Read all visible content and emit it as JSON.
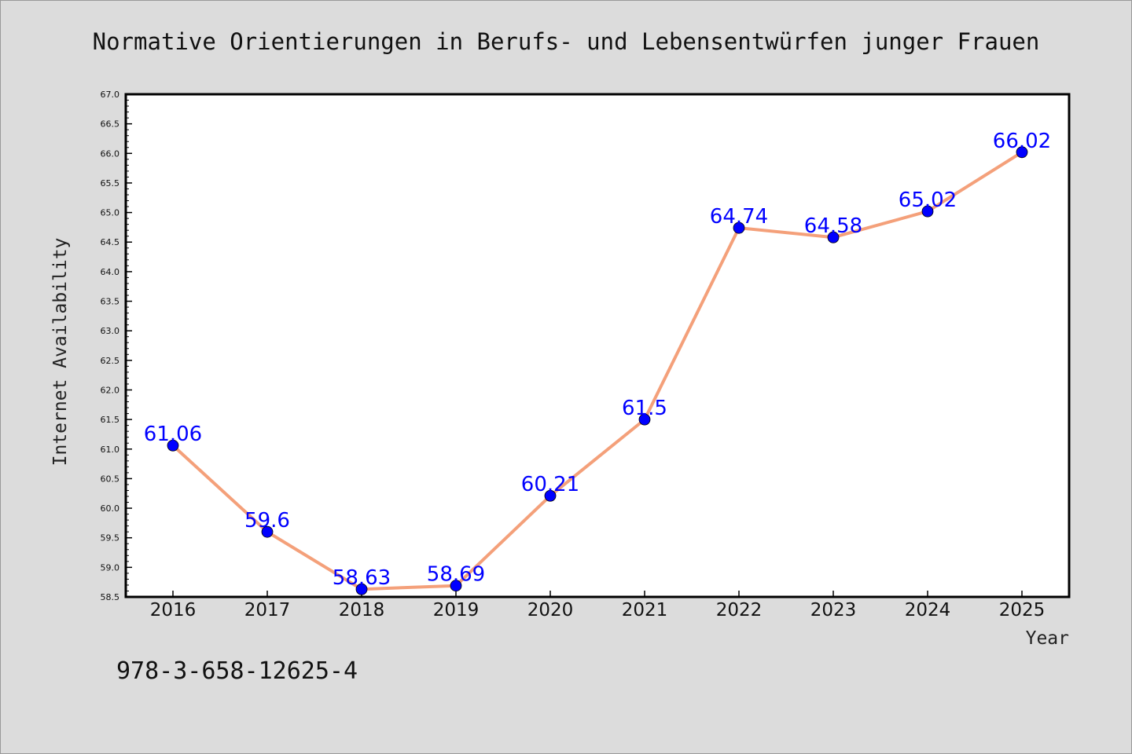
{
  "chart_data": {
    "type": "line",
    "title": "Normative Orientierungen in Berufs- und Lebensentwürfen junger Frauen",
    "xlabel": "Year",
    "ylabel": "Internet Availability",
    "categories": [
      "2016",
      "2017",
      "2018",
      "2019",
      "2020",
      "2021",
      "2022",
      "2023",
      "2024",
      "2025"
    ],
    "series": [
      {
        "values": [
          61.06,
          59.6,
          58.63,
          58.69,
          60.21,
          61.5,
          64.74,
          64.58,
          65.02,
          66.02
        ],
        "data_labels": [
          "61.06",
          "59.6",
          "58.63",
          "58.69",
          "60.21",
          "61.5",
          "64.74",
          "64.58",
          "65.02",
          "66.02"
        ]
      }
    ],
    "ylim": [
      58.5,
      67.0
    ],
    "yticks": [
      "58.5",
      "59.0",
      "59.5",
      "60.0",
      "60.5",
      "61.0",
      "61.5",
      "62.0",
      "62.5",
      "63.0",
      "63.5",
      "64.0",
      "64.5",
      "65.0",
      "65.5",
      "66.0",
      "66.5",
      "67.0"
    ],
    "grid": false,
    "line_color": "#f4a07a",
    "marker_color": "#0000ff",
    "label_color": "#0000ff"
  },
  "footnote": "978-3-658-12625-4"
}
